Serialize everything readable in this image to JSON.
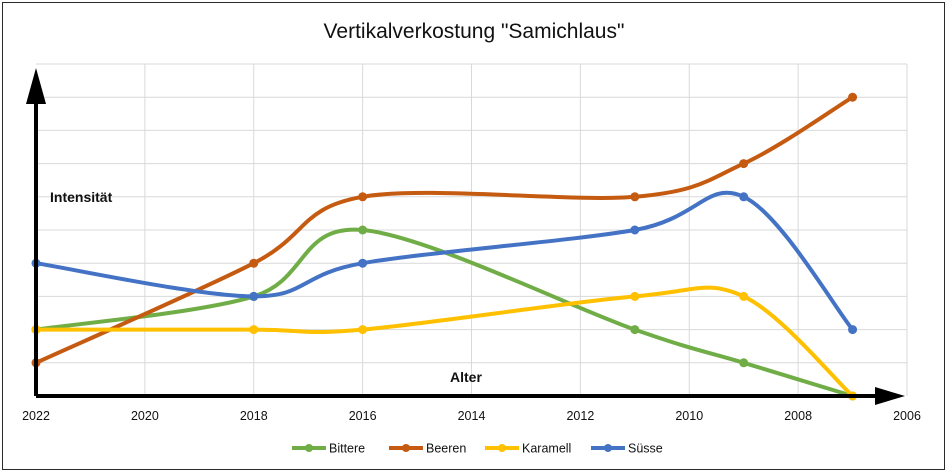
{
  "chart_data": {
    "type": "line",
    "title": "Vertikalverkostung \"Samichlaus\"",
    "xlabel": "Alter",
    "ylabel": "Intensität",
    "x_ticks": [
      "2022",
      "2020",
      "2018",
      "2016",
      "2014",
      "2012",
      "2010",
      "2008",
      "2006"
    ],
    "xlim": [
      2022,
      2006
    ],
    "x_reversed": true,
    "ylim": [
      0,
      10
    ],
    "grid": true,
    "legend_position": "bottom",
    "series": [
      {
        "name": "Bittere",
        "color": "#70ad47",
        "x": [
          2022,
          2018,
          2016,
          2011,
          2009,
          2007
        ],
        "y": [
          2,
          3,
          5,
          2,
          1,
          0
        ]
      },
      {
        "name": "Beeren",
        "color": "#c55a11",
        "x": [
          2022,
          2018,
          2016,
          2011,
          2009,
          2007
        ],
        "y": [
          1,
          4,
          6,
          6,
          7,
          9
        ]
      },
      {
        "name": "Karamell",
        "color": "#ffc000",
        "x": [
          2022,
          2018,
          2016,
          2011,
          2009,
          2007
        ],
        "y": [
          2,
          2,
          2,
          3,
          3,
          0
        ]
      },
      {
        "name": "Süsse",
        "color": "#4472c4",
        "x": [
          2022,
          2018,
          2016,
          2011,
          2009,
          2007
        ],
        "y": [
          4,
          3,
          4,
          5,
          6,
          2
        ]
      }
    ]
  }
}
